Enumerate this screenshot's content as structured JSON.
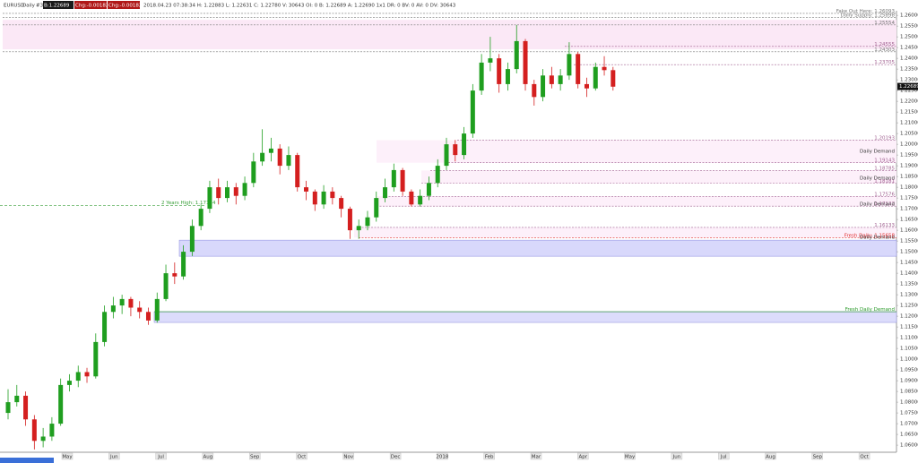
{
  "chart_data": {
    "type": "candlestick",
    "symbol": "EURUSD",
    "timeframe": "Daily",
    "header": {
      "tag": "#30",
      "bid": "B:1.22689",
      "chg1": "Chg:-0.00182",
      "chg2": "Chg:-0.00182",
      "info": "2018.04.23 07:38:34 H: 1.22883 L: 1.22631 C: 1.22780 V: 30643 OI: 0 B: 1.22689 A: 1.22690 1x1 DR: 0 BV: 0 AV: 0 DV: 30643"
    },
    "ylim": [
      1.0567,
      1.2613
    ],
    "yticks": [
      {
        "value": 1.06,
        "label": "1.06000"
      },
      {
        "value": 1.065,
        "label": "1.06500"
      },
      {
        "value": 1.07,
        "label": "1.07000"
      },
      {
        "value": 1.075,
        "label": "1.07500"
      },
      {
        "value": 1.08,
        "label": "1.08000"
      },
      {
        "value": 1.085,
        "label": "1.08500"
      },
      {
        "value": 1.09,
        "label": "1.09000"
      },
      {
        "value": 1.095,
        "label": "1.09500"
      },
      {
        "value": 1.1,
        "label": "1.10000"
      },
      {
        "value": 1.105,
        "label": "1.10500"
      },
      {
        "value": 1.11,
        "label": "1.11000"
      },
      {
        "value": 1.115,
        "label": "1.11500"
      },
      {
        "value": 1.12,
        "label": "1.12000"
      },
      {
        "value": 1.125,
        "label": "1.12500"
      },
      {
        "value": 1.13,
        "label": "1.13000"
      },
      {
        "value": 1.135,
        "label": "1.13500"
      },
      {
        "value": 1.14,
        "label": "1.14000"
      },
      {
        "value": 1.145,
        "label": "1.14500"
      },
      {
        "value": 1.15,
        "label": "1.15000"
      },
      {
        "value": 1.155,
        "label": "1.15500"
      },
      {
        "value": 1.16,
        "label": "1.16000"
      },
      {
        "value": 1.165,
        "label": "1.16500"
      },
      {
        "value": 1.17,
        "label": "1.17000"
      },
      {
        "value": 1.175,
        "label": "1.17500"
      },
      {
        "value": 1.18,
        "label": "1.18000"
      },
      {
        "value": 1.185,
        "label": "1.18500"
      },
      {
        "value": 1.19,
        "label": "1.19000"
      },
      {
        "value": 1.195,
        "label": "1.19500"
      },
      {
        "value": 1.2,
        "label": "1.20000"
      },
      {
        "value": 1.205,
        "label": "1.20500"
      },
      {
        "value": 1.21,
        "label": "1.21000"
      },
      {
        "value": 1.215,
        "label": "1.21500"
      },
      {
        "value": 1.22,
        "label": "1.22000"
      },
      {
        "value": 1.225,
        "label": "1.22500"
      },
      {
        "value": 1.23,
        "label": "1.23000"
      },
      {
        "value": 1.235,
        "label": "1.23500"
      },
      {
        "value": 1.24,
        "label": "1.24000"
      },
      {
        "value": 1.245,
        "label": "1.24500"
      },
      {
        "value": 1.25,
        "label": "1.25000"
      },
      {
        "value": 1.255,
        "label": "1.25500"
      },
      {
        "value": 1.26,
        "label": "1.26000"
      }
    ],
    "grid": false,
    "categories": [
      "May",
      "Jun",
      "Jul",
      "Aug",
      "Sep",
      "Oct",
      "Nov",
      "Dec",
      "2018",
      "Feb",
      "Mar",
      "Apr",
      "May",
      "Jun",
      "Jul",
      "Aug",
      "Sep",
      "Oct"
    ],
    "up_color": "#1f9e1f",
    "down_color": "#d41f1f",
    "candles": [
      [
        1.075,
        1.086,
        1.072,
        1.08
      ],
      [
        1.08,
        1.088,
        1.078,
        1.083
      ],
      [
        1.083,
        1.085,
        1.069,
        1.072
      ],
      [
        1.072,
        1.074,
        1.058,
        1.062
      ],
      [
        1.062,
        1.068,
        1.059,
        1.064
      ],
      [
        1.064,
        1.073,
        1.062,
        1.07
      ],
      [
        1.07,
        1.091,
        1.069,
        1.088
      ],
      [
        1.088,
        1.093,
        1.085,
        1.09
      ],
      [
        1.09,
        1.097,
        1.087,
        1.094
      ],
      [
        1.094,
        1.096,
        1.089,
        1.092
      ],
      [
        1.092,
        1.112,
        1.091,
        1.108
      ],
      [
        1.108,
        1.125,
        1.106,
        1.122
      ],
      [
        1.122,
        1.129,
        1.119,
        1.125
      ],
      [
        1.125,
        1.13,
        1.121,
        1.128
      ],
      [
        1.128,
        1.129,
        1.12,
        1.124
      ],
      [
        1.124,
        1.127,
        1.119,
        1.122
      ],
      [
        1.122,
        1.124,
        1.116,
        1.118
      ],
      [
        1.118,
        1.131,
        1.117,
        1.128
      ],
      [
        1.128,
        1.144,
        1.127,
        1.14
      ],
      [
        1.14,
        1.145,
        1.135,
        1.1385
      ],
      [
        1.1385,
        1.153,
        1.137,
        1.15
      ],
      [
        1.15,
        1.165,
        1.148,
        1.162
      ],
      [
        1.162,
        1.172,
        1.16,
        1.17
      ],
      [
        1.17,
        1.183,
        1.168,
        1.18
      ],
      [
        1.18,
        1.184,
        1.172,
        1.175
      ],
      [
        1.175,
        1.183,
        1.173,
        1.18
      ],
      [
        1.18,
        1.182,
        1.172,
        1.176
      ],
      [
        1.176,
        1.185,
        1.174,
        1.182
      ],
      [
        1.182,
        1.196,
        1.18,
        1.192
      ],
      [
        1.192,
        1.207,
        1.19,
        1.196
      ],
      [
        1.196,
        1.203,
        1.192,
        1.198
      ],
      [
        1.198,
        1.2,
        1.186,
        1.19
      ],
      [
        1.19,
        1.199,
        1.188,
        1.195
      ],
      [
        1.195,
        1.196,
        1.178,
        1.18
      ],
      [
        1.18,
        1.183,
        1.174,
        1.178
      ],
      [
        1.178,
        1.179,
        1.169,
        1.172
      ],
      [
        1.172,
        1.181,
        1.17,
        1.178
      ],
      [
        1.178,
        1.18,
        1.172,
        1.175
      ],
      [
        1.175,
        1.176,
        1.166,
        1.17
      ],
      [
        1.17,
        1.171,
        1.156,
        1.16
      ],
      [
        1.16,
        1.165,
        1.156,
        1.162
      ],
      [
        1.162,
        1.169,
        1.16,
        1.166
      ],
      [
        1.166,
        1.178,
        1.164,
        1.175
      ],
      [
        1.175,
        1.184,
        1.173,
        1.18
      ],
      [
        1.18,
        1.191,
        1.178,
        1.188
      ],
      [
        1.188,
        1.189,
        1.176,
        1.178
      ],
      [
        1.178,
        1.179,
        1.171,
        1.172
      ],
      [
        1.172,
        1.179,
        1.171,
        1.176
      ],
      [
        1.176,
        1.185,
        1.174,
        1.182
      ],
      [
        1.182,
        1.193,
        1.18,
        1.19
      ],
      [
        1.19,
        1.203,
        1.188,
        1.2
      ],
      [
        1.2,
        1.202,
        1.192,
        1.195
      ],
      [
        1.195,
        1.208,
        1.193,
        1.205
      ],
      [
        1.205,
        1.228,
        1.203,
        1.225
      ],
      [
        1.225,
        1.242,
        1.223,
        1.238
      ],
      [
        1.238,
        1.25,
        1.234,
        1.24
      ],
      [
        1.24,
        1.242,
        1.224,
        1.228
      ],
      [
        1.228,
        1.238,
        1.225,
        1.235
      ],
      [
        1.235,
        1.2555,
        1.233,
        1.248
      ],
      [
        1.248,
        1.249,
        1.225,
        1.228
      ],
      [
        1.228,
        1.23,
        1.218,
        1.222
      ],
      [
        1.222,
        1.235,
        1.22,
        1.232
      ],
      [
        1.232,
        1.236,
        1.226,
        1.228
      ],
      [
        1.228,
        1.235,
        1.225,
        1.232
      ],
      [
        1.232,
        1.2475,
        1.23,
        1.242
      ],
      [
        1.242,
        1.243,
        1.226,
        1.228
      ],
      [
        1.228,
        1.231,
        1.222,
        1.226
      ],
      [
        1.226,
        1.238,
        1.225,
        1.236
      ],
      [
        1.236,
        1.241,
        1.232,
        1.2345
      ],
      [
        1.2345,
        1.236,
        1.225,
        1.2268
      ]
    ],
    "zones": [
      {
        "top": 1.2579,
        "bottom": 1.2442,
        "color": "#fbe8f6"
      },
      {
        "top": 1.2019,
        "bottom": 1.1914,
        "color": "#fdf0fa"
      },
      {
        "top": 1.1878,
        "bottom": 1.1818,
        "color": "#fdf0fa"
      },
      {
        "top": 1.1758,
        "bottom": 1.1712,
        "color": "#fdf0fa"
      },
      {
        "top": 1.1613,
        "bottom": 1.1566,
        "color": "#fdf0fa"
      },
      {
        "top": 1.1554,
        "bottom": 1.1479,
        "color": "#d8d8fb"
      },
      {
        "top": 1.1221,
        "bottom": 1.1171,
        "color": "#dcdcfb"
      }
    ],
    "levels": [
      {
        "level": 1.26093,
        "label": "Fake Out Here: 1.26093",
        "color": "#777"
      },
      {
        "level": 1.25898,
        "label": "Daily Supply: 1.25898",
        "color": "#777"
      },
      {
        "level": 1.25554,
        "label": "1.25554",
        "color": "#777"
      },
      {
        "level": 1.24555,
        "label": "1.24555",
        "color": "#a06090"
      },
      {
        "level": 1.24303,
        "label": "1.24303",
        "color": "#777"
      },
      {
        "level": 1.23705,
        "label": "1.23705",
        "color": "#a06090"
      },
      {
        "level": 1.20193,
        "label": "1.20193",
        "color": "#a06090"
      },
      {
        "level": 1.19143,
        "label": "1.19143",
        "color": "#a06090"
      },
      {
        "level": 1.18785,
        "label": "1.18785",
        "color": "#a06090"
      },
      {
        "level": 1.18181,
        "label": "1.18181",
        "color": "#a06090"
      },
      {
        "level": 1.17576,
        "label": "1.17576",
        "color": "#a06090"
      },
      {
        "level": 1.17123,
        "label": "1.17123",
        "color": "#a06090"
      },
      {
        "level": 1.16133,
        "label": "1.16133",
        "color": "#a06090"
      },
      {
        "level": 1.15658,
        "label": "Fresh Daily: 1.15658",
        "color": "#e03030"
      },
      {
        "level": 1.1221,
        "label": "Fresh Daily Demand",
        "color": "#2a9a2a"
      }
    ],
    "notes": [
      {
        "level": 1.1968,
        "label": "Daily Demand"
      },
      {
        "level": 1.1842,
        "label": "Daily Demand"
      },
      {
        "level": 1.1721,
        "label": "Daily Demand"
      },
      {
        "level": 1.1567,
        "label": "Daily Demand"
      }
    ],
    "two_year_high": {
      "level": 1.17154,
      "label": "2 Years High: 1.17154",
      "color": "#3aa03a"
    },
    "price_marker": {
      "level": 1.22689,
      "label": "1.22689"
    }
  }
}
